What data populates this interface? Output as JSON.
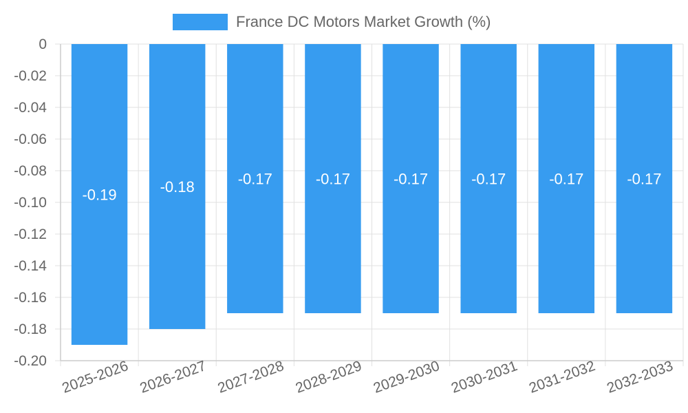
{
  "chart_data": {
    "type": "bar",
    "legend": "France DC Motors Market Growth (%)",
    "categories": [
      "2025-2026",
      "2026-2027",
      "2027-2028",
      "2028-2029",
      "2029-2030",
      "2030-2031",
      "2031-2032",
      "2032-2033"
    ],
    "values": [
      -0.19,
      -0.18,
      -0.17,
      -0.17,
      -0.17,
      -0.17,
      -0.17,
      -0.17
    ],
    "value_labels": [
      "-0.19",
      "-0.18",
      "-0.17",
      "-0.17",
      "-0.17",
      "-0.17",
      "-0.17",
      "-0.17"
    ],
    "ylim": [
      -0.2,
      0
    ],
    "yticks": [
      0,
      -0.02,
      -0.04,
      -0.06,
      -0.08,
      -0.1,
      -0.12,
      -0.14,
      -0.16,
      -0.18,
      -0.2
    ],
    "ytick_labels": [
      "0",
      "-0.02",
      "-0.04",
      "-0.06",
      "-0.08",
      "-0.10",
      "-0.12",
      "-0.14",
      "-0.16",
      "-0.18",
      "-0.20"
    ],
    "grid": true,
    "bar_color": "#379cf0",
    "legend_position": "top-center"
  }
}
